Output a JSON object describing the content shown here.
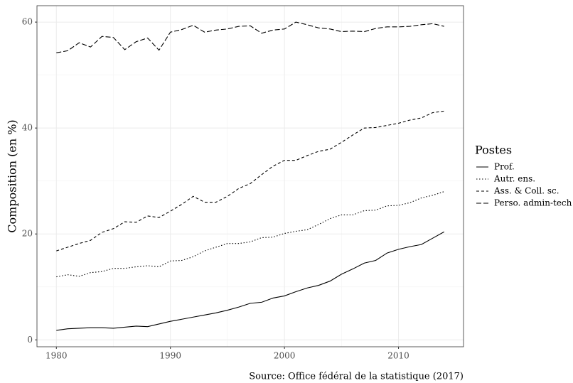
{
  "chart_data": {
    "type": "line",
    "y_label": "Composition (en %)",
    "caption": "Source: Office fédéral de la statistique (2017)",
    "legend_title": "Postes",
    "legend_position": "right",
    "grid": true,
    "minor_grid": true,
    "x": [
      1980,
      1981,
      1982,
      1983,
      1984,
      1985,
      1986,
      1987,
      1988,
      1989,
      1990,
      1991,
      1992,
      1993,
      1994,
      1995,
      1996,
      1997,
      1998,
      1999,
      2000,
      2001,
      2002,
      2003,
      2004,
      2005,
      2006,
      2007,
      2008,
      2009,
      2010,
      2011,
      2012,
      2013,
      2014
    ],
    "xlim": [
      1978.3,
      2015.7
    ],
    "xticks": [
      1980,
      1990,
      2000,
      2010
    ],
    "ylim": [
      -1.3,
      63.1
    ],
    "yticks": [
      0,
      20,
      40,
      60
    ],
    "series": [
      {
        "name": "Prof.",
        "color": "#000000",
        "dash": "solid",
        "values": [
          1.8,
          2.1,
          2.2,
          2.3,
          2.3,
          2.2,
          2.4,
          2.6,
          2.5,
          3.0,
          3.5,
          3.9,
          4.3,
          4.7,
          5.1,
          5.6,
          6.2,
          6.9,
          7.1,
          7.9,
          8.3,
          9.1,
          9.8,
          10.3,
          11.1,
          12.4,
          13.4,
          14.5,
          15.0,
          16.4,
          17.1,
          17.6,
          18.0,
          19.2,
          20.4
        ]
      },
      {
        "name": "Autr. ens.",
        "color": "#000000",
        "dash": "dotted",
        "values": [
          11.9,
          12.3,
          12.0,
          12.7,
          12.9,
          13.5,
          13.5,
          13.8,
          14.0,
          13.8,
          14.9,
          15.0,
          15.7,
          16.8,
          17.5,
          18.2,
          18.2,
          18.5,
          19.3,
          19.4,
          20.1,
          20.5,
          20.8,
          21.8,
          22.9,
          23.6,
          23.6,
          24.4,
          24.5,
          25.3,
          25.4,
          25.9,
          26.8,
          27.3,
          28.0
        ]
      },
      {
        "name": "Ass. & Coll. sc.",
        "color": "#000000",
        "dash": "dashed",
        "values": [
          16.8,
          17.5,
          18.2,
          18.8,
          20.3,
          21.0,
          22.3,
          22.2,
          23.4,
          23.1,
          24.3,
          25.6,
          27.1,
          26.0,
          26.0,
          27.1,
          28.6,
          29.5,
          31.2,
          32.8,
          33.9,
          33.9,
          34.8,
          35.6,
          36.0,
          37.3,
          38.7,
          40.0,
          40.1,
          40.5,
          40.9,
          41.5,
          41.9,
          42.9,
          43.2
        ]
      },
      {
        "name": "Perso. admin-tech",
        "color": "#000000",
        "dash": "longdash",
        "values": [
          54.2,
          54.6,
          56.1,
          55.3,
          57.3,
          57.1,
          54.8,
          56.3,
          57.0,
          54.7,
          58.1,
          58.6,
          59.4,
          58.1,
          58.5,
          58.7,
          59.2,
          59.3,
          57.9,
          58.5,
          58.7,
          60.0,
          59.5,
          58.9,
          58.7,
          58.2,
          58.3,
          58.2,
          58.8,
          59.1,
          59.1,
          59.2,
          59.5,
          59.7,
          59.2
        ]
      }
    ]
  }
}
